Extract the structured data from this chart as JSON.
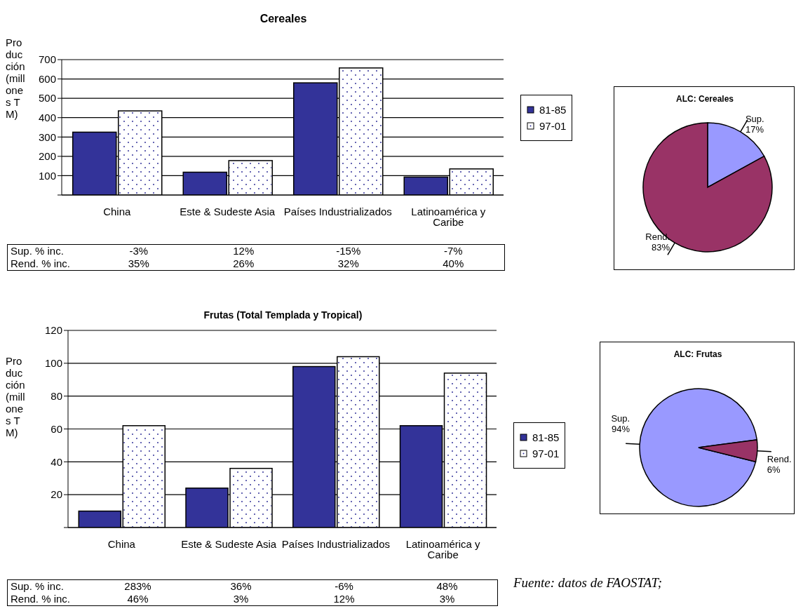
{
  "chart_data": [
    {
      "type": "bar",
      "title": "Cereales",
      "ylabel": "Producción (millones TM)",
      "categories": [
        "China",
        "Este & Sudeste Asia",
        "Países Industrializados",
        "Latinoamérica y Caribe"
      ],
      "series": [
        {
          "name": "81-85",
          "color": "#333399",
          "values": [
            325,
            118,
            580,
            93
          ]
        },
        {
          "name": "97-01",
          "color": "#ffffff",
          "values": [
            435,
            178,
            657,
            135
          ]
        }
      ],
      "ylim": [
        0,
        700
      ],
      "yticks": [
        {
          "value": 0,
          "label": null
        },
        100,
        200,
        300,
        400,
        500,
        600,
        700
      ],
      "grid": "y",
      "legend": "right",
      "annotations": [
        "Sup. % inc.",
        "-3%",
        "12%",
        "-15%",
        "-7%",
        "Rend. % inc.",
        "35%",
        "26%",
        "32%",
        "40%"
      ]
    },
    {
      "type": "pie",
      "title": "ALC: Cereales",
      "categories": [
        "Sup.",
        "Rend."
      ],
      "values": [
        17,
        83
      ],
      "colors": [
        "#9999ff",
        "#993366"
      ],
      "value_labels": [
        "17%",
        "83%"
      ]
    },
    {
      "type": "bar",
      "title": "Frutas (Total Templada y Tropical)",
      "ylabel": "Producción (millones TM)",
      "categories": [
        "China",
        "Este & Sudeste Asia",
        "Países Industrializados",
        "Latinoamérica y Caribe"
      ],
      "series": [
        {
          "name": "81-85",
          "color": "#333399",
          "values": [
            10,
            24,
            98,
            62
          ]
        },
        {
          "name": "97-01",
          "color": "#ffffff",
          "values": [
            62,
            36,
            104,
            94
          ]
        }
      ],
      "ylim": [
        0,
        120
      ],
      "yticks": [
        {
          "value": 0,
          "label": null
        },
        20,
        40,
        60,
        80,
        100,
        120
      ],
      "grid": "y",
      "legend": "right",
      "annotations": [
        "Sup. % inc.",
        "283%",
        "36%",
        "-6%",
        "48%",
        "Rend. % inc.",
        "46%",
        "3%",
        "12%",
        "3%",
        "Fuente: datos de FAOSTAT;"
      ]
    },
    {
      "type": "pie",
      "title": "ALC: Frutas",
      "categories": [
        "Sup.",
        "Rend."
      ],
      "values": [
        94,
        6
      ],
      "colors": [
        "#9999ff",
        "#993366"
      ],
      "value_labels": [
        "94%",
        "6%"
      ]
    }
  ]
}
